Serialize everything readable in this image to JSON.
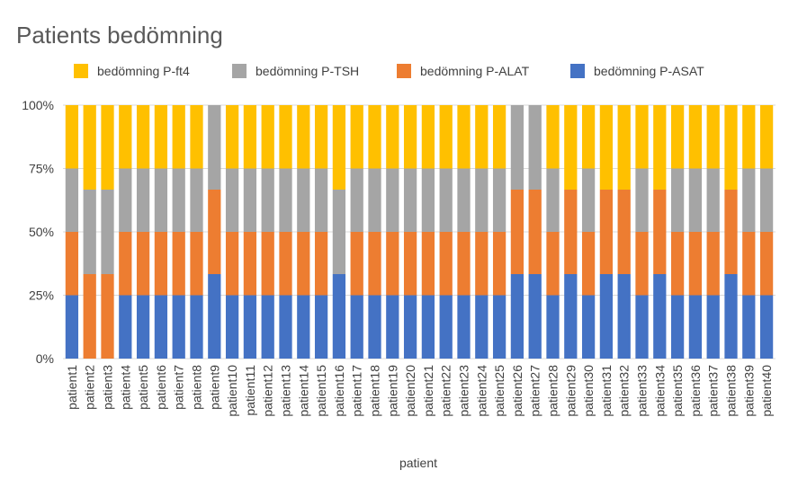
{
  "chart_data": {
    "type": "bar",
    "stacked": "percent",
    "title": "Patients bedömning",
    "xlabel": "patient",
    "ylabel": "",
    "ylim": [
      0,
      100
    ],
    "yticks": [
      "0%",
      "25%",
      "50%",
      "75%",
      "100%"
    ],
    "legend_position": "top",
    "categories": [
      "patient1",
      "patient2",
      "patient3",
      "patient4",
      "patient5",
      "patient6",
      "patient7",
      "patient8",
      "patient9",
      "patient10",
      "patient11",
      "patient12",
      "patient13",
      "patient14",
      "patient15",
      "patient16",
      "patient17",
      "patient18",
      "patient19",
      "patient20",
      "patient21",
      "patient22",
      "patient23",
      "patient24",
      "patient25",
      "patient26",
      "patient27",
      "patient28",
      "patient29",
      "patient30",
      "patient31",
      "patient32",
      "patient33",
      "patient34",
      "patient35",
      "patient36",
      "patient37",
      "patient38",
      "patient39",
      "patient40"
    ],
    "series": [
      {
        "name": "bedömning P-ASAT",
        "color": "#4472c4",
        "values": [
          1,
          0,
          0,
          1,
          1,
          1,
          1,
          1,
          1,
          1,
          1,
          1,
          1,
          1,
          1,
          1,
          1,
          1,
          1,
          1,
          1,
          1,
          1,
          1,
          1,
          1,
          1,
          1,
          1,
          1,
          1,
          1,
          1,
          1,
          1,
          1,
          1,
          1,
          1,
          1
        ]
      },
      {
        "name": "bedömning P-ALAT",
        "color": "#ed7d31",
        "values": [
          1,
          1,
          1,
          1,
          1,
          1,
          1,
          1,
          1,
          1,
          1,
          1,
          1,
          1,
          1,
          0,
          1,
          1,
          1,
          1,
          1,
          1,
          1,
          1,
          1,
          1,
          1,
          1,
          1,
          1,
          1,
          1,
          1,
          1,
          1,
          1,
          1,
          1,
          1,
          1
        ]
      },
      {
        "name": "bedömning P-TSH",
        "color": "#a5a5a5",
        "values": [
          1,
          1,
          1,
          1,
          1,
          1,
          1,
          1,
          1,
          1,
          1,
          1,
          1,
          1,
          1,
          1,
          1,
          1,
          1,
          1,
          1,
          1,
          1,
          1,
          1,
          1,
          1,
          1,
          0,
          1,
          0,
          0,
          1,
          0,
          1,
          1,
          1,
          0,
          1,
          1
        ]
      },
      {
        "name": "bedömning P-ft4",
        "color": "#ffc000",
        "values": [
          1,
          1,
          1,
          1,
          1,
          1,
          1,
          1,
          0,
          1,
          1,
          1,
          1,
          1,
          1,
          1,
          1,
          1,
          1,
          1,
          1,
          1,
          1,
          1,
          1,
          0,
          0,
          1,
          1,
          1,
          1,
          1,
          1,
          1,
          1,
          1,
          1,
          1,
          1,
          1
        ]
      }
    ],
    "legend_order": [
      "bedömning P-ft4",
      "bedömning P-TSH",
      "bedömning P-ALAT",
      "bedömning P-ASAT"
    ]
  }
}
